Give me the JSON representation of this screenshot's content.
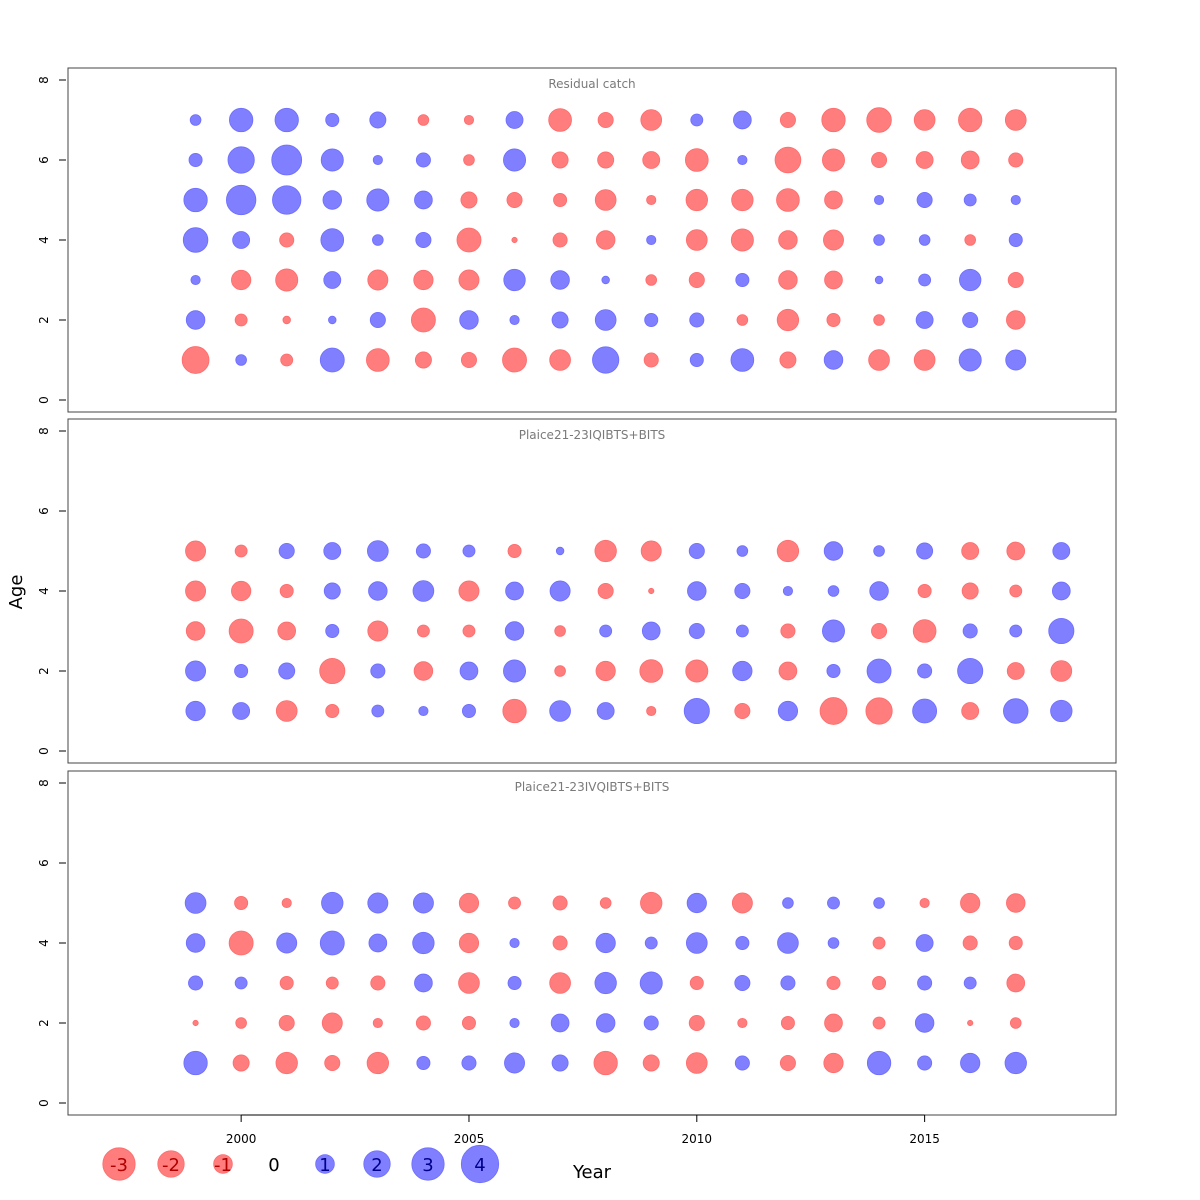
{
  "chart_data": {
    "type": "scatter",
    "subtype": "bubble",
    "xlabel": "Year",
    "ylabel": "Age",
    "xlim": [
      1996.2,
      2019.2
    ],
    "ylim": [
      -0.3,
      8.3
    ],
    "x_ticks": [
      "2000",
      "2005",
      "2010",
      "2015"
    ],
    "y_ticks": [
      "0",
      "2",
      "4",
      "6",
      "8"
    ],
    "colors": {
      "positive": "#6d6dff",
      "negative": "#ff6b6b",
      "zero_text": "#000000",
      "positive_text": "#00008b",
      "negative_text": "#b00000"
    },
    "legend": {
      "values": [
        -3,
        -2,
        -1,
        0,
        1,
        2,
        3,
        4
      ],
      "labels": [
        "-3",
        "-2",
        "-1",
        "0",
        "1",
        "2",
        "3",
        "4"
      ]
    },
    "panels": [
      {
        "title": "Residual catch",
        "years": [
          1999,
          2000,
          2001,
          2002,
          2003,
          2004,
          2005,
          2006,
          2007,
          2008,
          2009,
          2010,
          2011,
          2012,
          2013,
          2014,
          2015,
          2016,
          2017
        ],
        "ages": [
          1,
          2,
          3,
          4,
          5,
          6,
          7
        ],
        "residuals": [
          [
            -2.5,
            0.4,
            -0.5,
            2.0,
            -1.8,
            -0.9,
            -0.8,
            -2.0,
            -1.5,
            2.4,
            -0.7,
            0.6,
            1.8,
            -0.9,
            1.2,
            -1.5,
            -1.5,
            1.7,
            1.4
          ],
          [
            1.2,
            -0.5,
            -0.2,
            0.2,
            0.8,
            -2.0,
            1.2,
            0.3,
            0.9,
            1.5,
            0.6,
            0.7,
            -0.4,
            -1.6,
            -0.6,
            -0.4,
            1.0,
            0.8,
            -1.2
          ],
          [
            0.3,
            -1.3,
            -1.7,
            1.0,
            -1.4,
            -1.3,
            -1.4,
            1.6,
            1.2,
            0.2,
            -0.4,
            -0.8,
            0.6,
            -1.2,
            -1.1,
            0.2,
            0.5,
            1.6,
            -0.8
          ],
          [
            2.1,
            1.0,
            -0.7,
            1.8,
            0.4,
            0.8,
            -2.0,
            -0.1,
            -0.7,
            -1.2,
            0.3,
            -1.5,
            -1.7,
            -1.2,
            -1.4,
            0.4,
            0.4,
            -0.4,
            0.6
          ],
          [
            1.9,
            3.0,
            2.8,
            1.2,
            1.7,
            1.1,
            -0.9,
            -0.8,
            -0.6,
            -1.5,
            -0.3,
            -1.6,
            -1.6,
            -1.8,
            -1.1,
            0.3,
            0.8,
            0.5,
            0.3
          ],
          [
            0.6,
            2.4,
            3.1,
            1.7,
            0.3,
            0.7,
            -0.4,
            1.7,
            -0.9,
            -0.9,
            -1.0,
            -1.8,
            0.3,
            -2.3,
            -1.7,
            -0.8,
            -1.0,
            -1.1,
            -0.7
          ],
          [
            0.4,
            1.9,
            1.9,
            0.6,
            0.9,
            -0.4,
            -0.3,
            1.0,
            -1.8,
            -0.8,
            -1.5,
            0.5,
            1.1,
            -0.8,
            -1.9,
            -2.1,
            -1.5,
            -1.9,
            -1.5
          ]
        ]
      },
      {
        "title": "Plaice21-23IQIBTS+BITS",
        "years": [
          1999,
          2000,
          2001,
          2002,
          2003,
          2004,
          2005,
          2006,
          2007,
          2008,
          2009,
          2010,
          2011,
          2012,
          2013,
          2014,
          2015,
          2016,
          2017,
          2018
        ],
        "ages": [
          1,
          2,
          3,
          4,
          5
        ],
        "residuals": [
          [
            1.3,
            1.0,
            -1.5,
            -0.6,
            0.5,
            0.3,
            0.6,
            -1.9,
            1.5,
            1.0,
            -0.3,
            2.2,
            -0.8,
            1.3,
            -2.5,
            -2.4,
            2.0,
            -1.0,
            2.1,
            1.6
          ],
          [
            1.4,
            0.6,
            0.9,
            -2.2,
            0.7,
            -1.2,
            1.1,
            1.7,
            -0.4,
            -1.3,
            -1.8,
            -1.7,
            1.3,
            -1.1,
            0.6,
            2.0,
            0.7,
            2.2,
            -1.0,
            -1.5
          ],
          [
            -1.2,
            -2.0,
            -1.1,
            0.6,
            -1.4,
            -0.5,
            -0.5,
            1.2,
            -0.4,
            0.5,
            1.1,
            0.8,
            0.5,
            -0.7,
            1.7,
            -0.8,
            -1.8,
            0.7,
            0.5,
            2.2
          ],
          [
            -1.4,
            -1.3,
            -0.6,
            0.9,
            1.2,
            1.5,
            -1.4,
            1.1,
            1.4,
            -0.8,
            -0.1,
            1.2,
            0.8,
            0.3,
            0.4,
            1.2,
            -0.6,
            -0.9,
            -0.5,
            1.1
          ],
          [
            -1.4,
            -0.5,
            0.8,
            1.0,
            1.5,
            0.7,
            0.5,
            -0.6,
            0.2,
            -1.6,
            -1.4,
            0.8,
            0.4,
            -1.6,
            1.2,
            0.4,
            0.9,
            -1.0,
            -1.1,
            1.0
          ]
        ]
      },
      {
        "title": "Plaice21-23IVQIBTS+BITS",
        "years": [
          1999,
          2000,
          2001,
          2002,
          2003,
          2004,
          2005,
          2006,
          2007,
          2008,
          2009,
          2010,
          2011,
          2012,
          2013,
          2014,
          2015,
          2016,
          2017
        ],
        "ages": [
          1,
          2,
          3,
          4,
          5
        ],
        "residuals": [
          [
            1.9,
            -0.9,
            -1.6,
            -0.8,
            -1.6,
            0.6,
            0.7,
            1.4,
            0.9,
            -1.9,
            -0.9,
            -1.5,
            0.7,
            -0.8,
            -1.3,
            1.9,
            0.7,
            1.3,
            1.6
          ],
          [
            -0.1,
            -0.4,
            -0.8,
            -1.4,
            -0.3,
            -0.7,
            -0.6,
            0.3,
            1.1,
            1.2,
            0.7,
            -0.8,
            -0.3,
            -0.6,
            -1.1,
            -0.5,
            1.2,
            -0.1,
            -0.4
          ],
          [
            0.7,
            0.5,
            -0.6,
            -0.5,
            -0.7,
            1.1,
            -1.5,
            0.6,
            -1.5,
            1.6,
            1.7,
            -0.6,
            0.8,
            0.7,
            -0.6,
            -0.6,
            0.7,
            0.5,
            -1.1
          ],
          [
            1.2,
            -2.0,
            1.4,
            2.0,
            1.1,
            1.6,
            -1.3,
            0.3,
            -0.7,
            1.3,
            0.5,
            1.5,
            0.6,
            1.5,
            0.4,
            -0.5,
            1.0,
            -0.7,
            -0.6
          ],
          [
            1.5,
            -0.6,
            -0.3,
            1.6,
            1.4,
            1.4,
            -1.3,
            -0.5,
            -0.7,
            -0.4,
            -1.6,
            1.3,
            -1.4,
            0.4,
            0.5,
            0.4,
            -0.3,
            -1.3,
            -1.2
          ]
        ]
      }
    ]
  }
}
